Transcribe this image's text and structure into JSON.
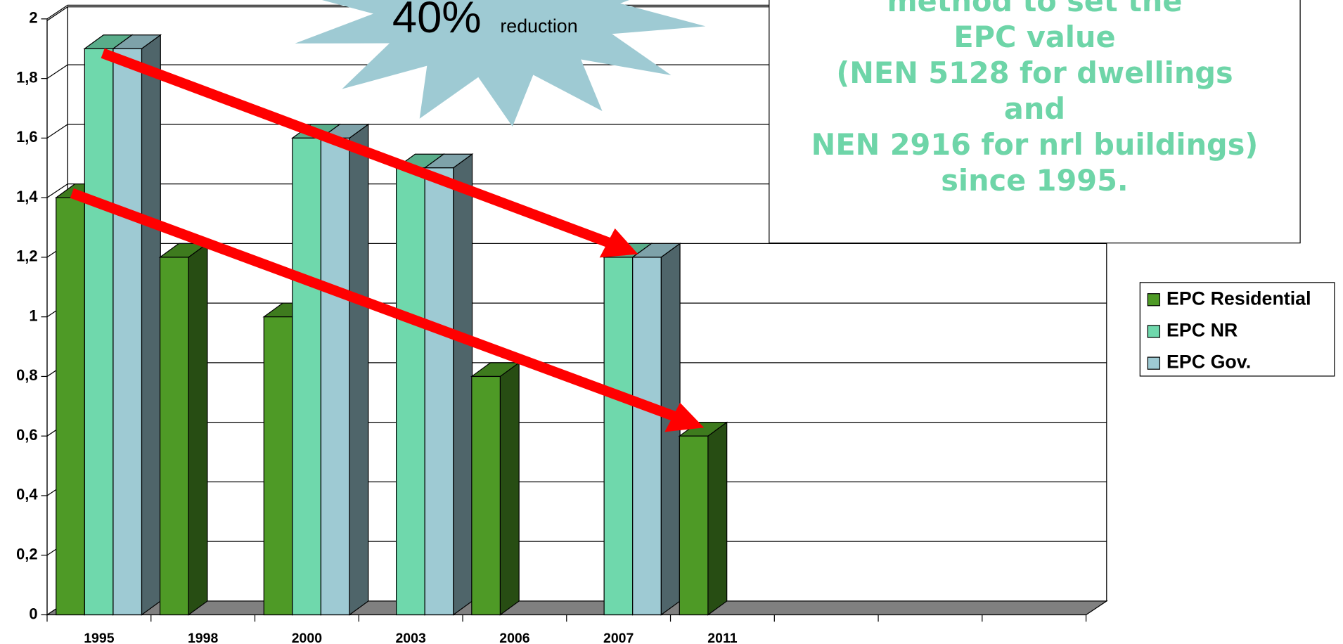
{
  "chart_data": {
    "type": "bar3d",
    "categories": [
      "1995",
      "1998",
      "2000",
      "2003",
      "2006",
      "2007",
      "2011",
      null,
      null,
      null
    ],
    "series": [
      {
        "name": "EPC Residential",
        "color": "#4e9a26",
        "values": [
          1.4,
          1.2,
          1.0,
          null,
          0.8,
          null,
          0.6,
          null,
          null,
          null
        ]
      },
      {
        "name": "EPC NR",
        "color": "#6fd8ac",
        "values": [
          1.9,
          null,
          1.6,
          1.5,
          null,
          1.2,
          null,
          null,
          null,
          null
        ]
      },
      {
        "name": "EPC Gov.",
        "color": "#9ecad3",
        "values": [
          1.9,
          null,
          1.6,
          1.5,
          null,
          1.2,
          null,
          null,
          null,
          null
        ]
      }
    ],
    "ylim": [
      0,
      2
    ],
    "yticks": [
      0,
      {
        "value": 0.2,
        "label": "0,2"
      },
      {
        "value": 0.4,
        "label": "0,4"
      },
      {
        "value": 0.6,
        "label": "0,6"
      },
      {
        "value": 0.8,
        "label": "0,8"
      },
      1,
      {
        "value": 1.2,
        "label": "1,2"
      },
      {
        "value": 1.4,
        "label": "1,4"
      },
      {
        "value": 1.6,
        "label": "1,6"
      },
      {
        "value": 1.8,
        "label": "1,8"
      },
      2
    ],
    "grid": true,
    "legend": "right",
    "annotations": {
      "burst_big": "40%",
      "burst_small": "reduction",
      "box_lines": [
        "method to set the",
        "EPC value",
        "(NEN 5128 for dwellings",
        "and",
        "NEN 2916 for nrl buildings)",
        "since 1995."
      ]
    }
  }
}
